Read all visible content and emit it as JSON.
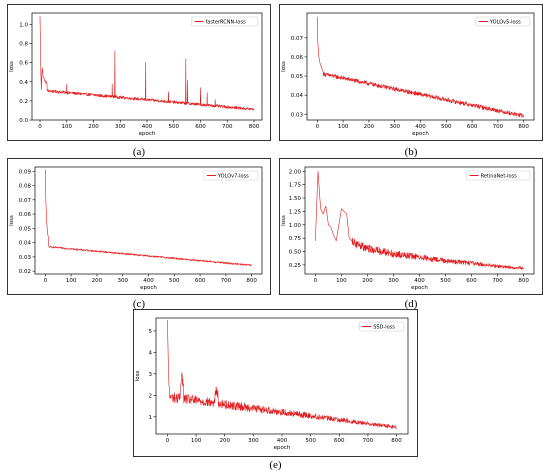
{
  "colors": {
    "line": "#e31a1c",
    "axis": "#000000",
    "frame": "#333333"
  },
  "chart_data": [
    {
      "type": "line",
      "panel_label": "(a)",
      "xlabel": "epoch",
      "ylabel": "loss",
      "legend": "fasterRCNN-loss",
      "legend_position": "top-right",
      "grid": false,
      "xlim": [
        -30,
        830
      ],
      "ylim": [
        0,
        1.12
      ],
      "xticks": [
        0,
        100,
        200,
        300,
        400,
        500,
        600,
        700,
        800
      ],
      "yticks": [
        0.0,
        0.2,
        0.4,
        0.6,
        0.8,
        1.0
      ],
      "ytick_labels": [
        "0.0",
        "0.2",
        "0.4",
        "0.6",
        "0.8",
        "1.0"
      ],
      "curve": {
        "start": 1.08,
        "floor": 0.31,
        "end": 0.11,
        "decay": 4,
        "noise": 0.015
      },
      "series": [
        {
          "name": "fasterRCNN-loss",
          "x": [
            0,
            1,
            3,
            5,
            8,
            12,
            20,
            30,
            50,
            80,
            99,
            100,
            101,
            105,
            130,
            160,
            200,
            229,
            230,
            231,
            260,
            269,
            270,
            271,
            279,
            280,
            281,
            320,
            360,
            394,
            395,
            396,
            400,
            401,
            402,
            440,
            479,
            480,
            481,
            520,
            544,
            545,
            546,
            550,
            551,
            552,
            580,
            599,
            600,
            601,
            624,
            625,
            626,
            650,
            654,
            655,
            656,
            680,
            700,
            730,
            750,
            770,
            800
          ],
          "y": [
            1.09,
            0.9,
            0.5,
            0.32,
            0.55,
            0.45,
            0.4,
            0.37,
            0.33,
            0.28,
            0.26,
            0.39,
            0.26,
            0.24,
            0.21,
            0.19,
            0.17,
            0.17,
            0.31,
            0.17,
            0.16,
            0.16,
            0.39,
            0.16,
            0.16,
            0.73,
            0.16,
            0.15,
            0.14,
            0.14,
            0.59,
            0.14,
            0.14,
            0.03,
            0.14,
            0.13,
            0.13,
            0.29,
            0.13,
            0.13,
            0.13,
            0.64,
            0.13,
            0.13,
            0.4,
            0.13,
            0.12,
            0.12,
            0.35,
            0.12,
            0.12,
            0.29,
            0.12,
            0.12,
            0.12,
            0.2,
            0.12,
            0.12,
            0.12,
            0.14,
            0.11,
            0.11,
            0.11
          ]
        }
      ]
    },
    {
      "type": "line",
      "panel_label": "(b)",
      "xlabel": "epoch",
      "ylabel": "loss",
      "legend": "YOLOv5-loss",
      "legend_position": "top-right",
      "grid": false,
      "xlim": [
        -40,
        840
      ],
      "ylim": [
        0.027,
        0.083
      ],
      "xticks": [
        0,
        100,
        200,
        300,
        400,
        500,
        600,
        700,
        800
      ],
      "yticks": [
        0.03,
        0.04,
        0.05,
        0.06,
        0.07
      ],
      "ytick_labels": [
        "0.03",
        "0.04",
        "0.05",
        "0.06",
        "0.07"
      ],
      "curve": {
        "start": 0.081,
        "floor": 0.051,
        "end": 0.029,
        "decay": 22,
        "noise": 0.0011
      },
      "series": [
        {
          "name": "YOLOv5-loss",
          "x": [
            0,
            2,
            5,
            10,
            20,
            40,
            70,
            100,
            150,
            200,
            250,
            300,
            350,
            400,
            450,
            500,
            550,
            600,
            650,
            700,
            750,
            800
          ],
          "y": [
            0.081,
            0.068,
            0.061,
            0.057,
            0.053,
            0.05,
            0.048,
            0.046,
            0.044,
            0.0425,
            0.041,
            0.04,
            0.039,
            0.038,
            0.037,
            0.036,
            0.035,
            0.034,
            0.033,
            0.032,
            0.031,
            0.029
          ]
        }
      ]
    },
    {
      "type": "line",
      "panel_label": "(c)",
      "xlabel": "epoch",
      "ylabel": "loss",
      "legend": "YOLOv7-loss",
      "legend_position": "top-right",
      "grid": false,
      "xlim": [
        -40,
        840
      ],
      "ylim": [
        0.018,
        0.093
      ],
      "xticks": [
        0,
        100,
        200,
        300,
        400,
        500,
        600,
        700,
        800
      ],
      "yticks": [
        0.02,
        0.03,
        0.04,
        0.05,
        0.06,
        0.07,
        0.08,
        0.09
      ],
      "ytick_labels": [
        "0.02",
        "0.03",
        "0.04",
        "0.05",
        "0.06",
        "0.07",
        "0.08",
        "0.09"
      ],
      "curve": {
        "start": 0.091,
        "floor": 0.037,
        "end": 0.024,
        "decay": 12,
        "noise": 0.0006
      },
      "series": [
        {
          "name": "YOLOv7-loss",
          "x": [
            0,
            2,
            5,
            10,
            20,
            40,
            70,
            100,
            150,
            200,
            250,
            300,
            350,
            400,
            450,
            500,
            550,
            600,
            650,
            700,
            750,
            800
          ],
          "y": [
            0.091,
            0.07,
            0.055,
            0.045,
            0.041,
            0.038,
            0.037,
            0.036,
            0.035,
            0.034,
            0.033,
            0.032,
            0.031,
            0.03,
            0.029,
            0.028,
            0.027,
            0.027,
            0.026,
            0.025,
            0.025,
            0.024
          ]
        }
      ]
    },
    {
      "type": "line",
      "panel_label": "(d)",
      "xlabel": "epoch",
      "ylabel": "loss",
      "legend": "RetinaNet-loss",
      "legend_position": "top-right",
      "grid": false,
      "xlim": [
        -40,
        840
      ],
      "ylim": [
        0.08,
        2.08
      ],
      "xticks": [
        0,
        100,
        200,
        300,
        400,
        500,
        600,
        700,
        800
      ],
      "yticks": [
        0.25,
        0.5,
        0.75,
        1.0,
        1.25,
        1.5,
        1.75,
        2.0
      ],
      "ytick_labels": [
        "0.25",
        "0.50",
        "0.75",
        "1.00",
        "1.25",
        "1.50",
        "1.75",
        "2.00"
      ],
      "curve": {
        "start": 1.35,
        "floor": 0.65,
        "end": 0.19,
        "decay": 140,
        "noise": 0.09
      },
      "series": [
        {
          "name": "RetinaNet-loss",
          "x": [
            0,
            5,
            10,
            20,
            30,
            40,
            50,
            60,
            70,
            80,
            100,
            110,
            120,
            130,
            140,
            150,
            200,
            250,
            300,
            350,
            400,
            450,
            500,
            550,
            600,
            650,
            700,
            750,
            800
          ],
          "y": [
            0.7,
            1.4,
            2.0,
            1.3,
            1.2,
            1.35,
            1.0,
            0.95,
            0.8,
            0.7,
            1.3,
            1.25,
            1.2,
            0.75,
            0.7,
            0.65,
            0.55,
            0.5,
            0.45,
            0.42,
            0.4,
            0.35,
            0.32,
            0.3,
            0.28,
            0.25,
            0.22,
            0.2,
            0.19
          ]
        }
      ]
    },
    {
      "type": "line",
      "panel_label": "(e)",
      "xlabel": "epoch",
      "ylabel": "loss",
      "legend": "SSD-loss",
      "legend_position": "top-right",
      "grid": false,
      "xlim": [
        -40,
        840
      ],
      "ylim": [
        0.2,
        5.6
      ],
      "xticks": [
        0,
        100,
        200,
        300,
        400,
        500,
        600,
        700,
        800
      ],
      "yticks": [
        1,
        2,
        3,
        4,
        5
      ],
      "ytick_labels": [
        "1",
        "2",
        "3",
        "4",
        "5"
      ],
      "curve": {
        "start": 5.5,
        "floor": 1.9,
        "end": 0.5,
        "decay": 6,
        "noise": 0.25
      },
      "series": [
        {
          "name": "SSD-loss",
          "x": [
            0,
            2,
            5,
            10,
            20,
            40,
            50,
            60,
            80,
            100,
            150,
            170,
            200,
            250,
            300,
            370,
            380,
            400,
            450,
            500,
            550,
            600,
            650,
            700,
            750,
            800
          ],
          "y": [
            5.5,
            4.2,
            2.5,
            2.0,
            1.8,
            1.7,
            3.0,
            1.9,
            1.7,
            1.6,
            1.4,
            2.2,
            1.3,
            1.2,
            1.1,
            1.5,
            1.0,
            0.9,
            0.8,
            0.7,
            0.65,
            0.6,
            0.58,
            0.55,
            0.52,
            0.5
          ]
        }
      ]
    }
  ]
}
